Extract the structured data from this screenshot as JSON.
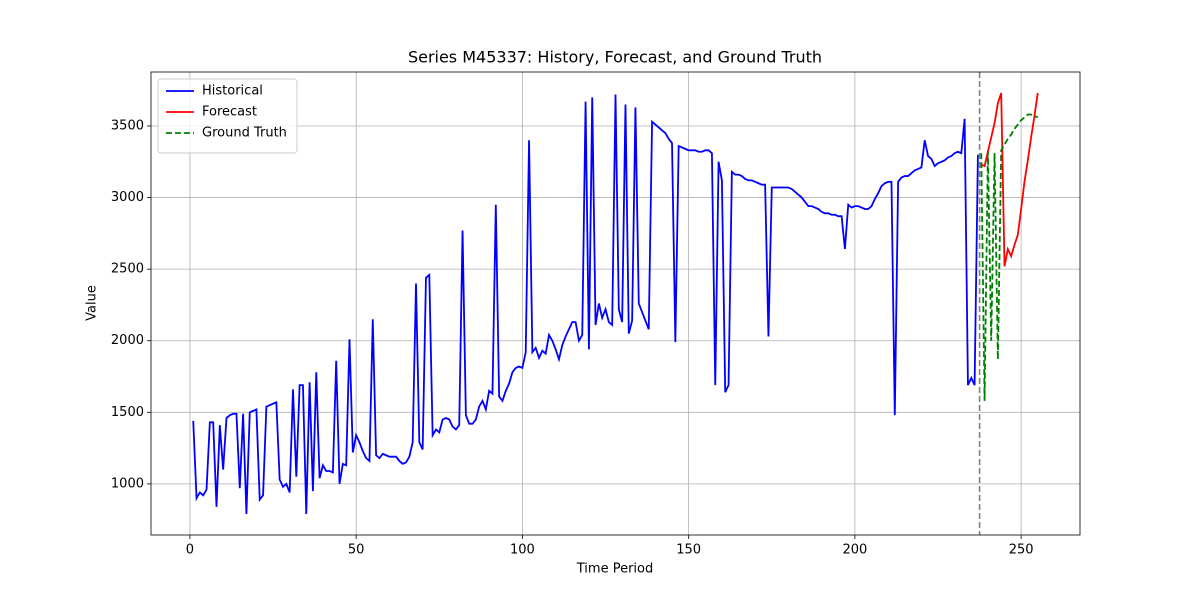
{
  "chart_data": {
    "type": "line",
    "title": "Series M45337: History, Forecast, and Ground Truth",
    "x_label": "Time Period",
    "y_label": "Value",
    "xlim": [
      -11.7,
      267.7
    ],
    "ylim": [
      643,
      3877
    ],
    "xticks": [
      0,
      50,
      100,
      150,
      200,
      250
    ],
    "yticks": [
      1000,
      1500,
      2000,
      2500,
      3000,
      3500
    ],
    "grid": true,
    "legend": "upper left",
    "vline": 237.5,
    "series": [
      {
        "name": "Historical",
        "color": "#0000ff",
        "dash": false,
        "x": [
          1,
          2,
          3,
          4,
          5,
          6,
          7,
          8,
          9,
          10,
          11,
          12,
          13,
          14,
          15,
          16,
          17,
          18,
          19,
          20,
          21,
          22,
          23,
          24,
          25,
          26,
          27,
          28,
          29,
          30,
          31,
          32,
          33,
          34,
          35,
          36,
          37,
          38,
          39,
          40,
          41,
          42,
          43,
          44,
          45,
          46,
          47,
          48,
          49,
          50,
          51,
          52,
          53,
          54,
          55,
          56,
          57,
          58,
          59,
          60,
          61,
          62,
          63,
          64,
          65,
          66,
          67,
          68,
          69,
          70,
          71,
          72,
          73,
          74,
          75,
          76,
          77,
          78,
          79,
          80,
          81,
          82,
          83,
          84,
          85,
          86,
          87,
          88,
          89,
          90,
          91,
          92,
          93,
          94,
          95,
          96,
          97,
          98,
          99,
          100,
          101,
          102,
          103,
          104,
          105,
          106,
          107,
          108,
          109,
          110,
          111,
          112,
          113,
          114,
          115,
          116,
          117,
          118,
          119,
          120,
          121,
          122,
          123,
          124,
          125,
          126,
          127,
          128,
          129,
          130,
          131,
          132,
          133,
          134,
          135,
          136,
          137,
          138,
          139,
          140,
          141,
          142,
          143,
          144,
          145,
          146,
          147,
          148,
          149,
          150,
          151,
          152,
          153,
          154,
          155,
          156,
          157,
          158,
          159,
          160,
          161,
          162,
          163,
          164,
          165,
          166,
          167,
          168,
          169,
          170,
          171,
          172,
          173,
          174,
          175,
          176,
          177,
          178,
          179,
          180,
          181,
          182,
          183,
          184,
          185,
          186,
          187,
          188,
          189,
          190,
          191,
          192,
          193,
          194,
          195,
          196,
          197,
          198,
          199,
          200,
          201,
          202,
          203,
          204,
          205,
          206,
          207,
          208,
          209,
          210,
          211,
          212,
          213,
          214,
          215,
          216,
          217,
          218,
          219,
          220,
          221,
          222,
          223,
          224,
          225,
          226,
          227,
          228,
          229,
          230,
          231,
          232,
          233,
          234,
          235,
          236,
          237
        ],
        "values": [
          1440,
          900,
          940,
          920,
          960,
          1430,
          1430,
          840,
          1410,
          1100,
          1460,
          1480,
          1490,
          1490,
          970,
          1490,
          790,
          1500,
          1510,
          1520,
          890,
          920,
          1540,
          1550,
          1560,
          1570,
          1030,
          980,
          1000,
          940,
          1660,
          1050,
          1690,
          1690,
          790,
          1710,
          950,
          1780,
          1040,
          1130,
          1090,
          1090,
          1080,
          1860,
          1000,
          1140,
          1130,
          2010,
          1220,
          1340,
          1290,
          1230,
          1180,
          1160,
          2150,
          1200,
          1180,
          1210,
          1200,
          1190,
          1190,
          1190,
          1160,
          1140,
          1150,
          1190,
          1290,
          2400,
          1290,
          1240,
          2440,
          2460,
          1340,
          1380,
          1360,
          1450,
          1460,
          1450,
          1400,
          1380,
          1410,
          2770,
          1480,
          1420,
          1420,
          1450,
          1540,
          1580,
          1520,
          1650,
          1630,
          2950,
          1610,
          1580,
          1650,
          1700,
          1780,
          1810,
          1820,
          1810,
          1920,
          3400,
          1920,
          1950,
          1880,
          1930,
          1910,
          2040,
          2000,
          1940,
          1870,
          1970,
          2030,
          2080,
          2130,
          2130,
          2000,
          2040,
          3670,
          1940,
          3700,
          2110,
          2260,
          2160,
          2220,
          2130,
          2110,
          3720,
          2220,
          2130,
          3650,
          2050,
          2140,
          3630,
          2260,
          2200,
          2140,
          2080,
          3530,
          3510,
          3490,
          3470,
          3450,
          3410,
          3380,
          1990,
          3360,
          3350,
          3340,
          3330,
          3330,
          3330,
          3320,
          3320,
          3330,
          3330,
          3310,
          1690,
          3250,
          3120,
          1640,
          1690,
          3180,
          3160,
          3160,
          3150,
          3130,
          3120,
          3120,
          3110,
          3100,
          3090,
          3090,
          2030,
          3070,
          3070,
          3070,
          3070,
          3070,
          3070,
          3060,
          3040,
          3020,
          3000,
          2970,
          2940,
          2940,
          2930,
          2920,
          2900,
          2890,
          2890,
          2880,
          2880,
          2870,
          2870,
          2640,
          2950,
          2930,
          2940,
          2940,
          2930,
          2920,
          2920,
          2940,
          2990,
          3030,
          3080,
          3100,
          3110,
          3110,
          1480,
          3110,
          3140,
          3150,
          3150,
          3170,
          3190,
          3200,
          3210,
          3400,
          3290,
          3270,
          3220,
          3240,
          3250,
          3260,
          3280,
          3290,
          3310,
          3320,
          3310,
          3550,
          1690,
          1740,
          1690,
          3300
        ]
      },
      {
        "name": "Forecast",
        "color": "#ff0000",
        "dash": false,
        "x": [
          238,
          239,
          240,
          241,
          242,
          243,
          244,
          245,
          246,
          247,
          248,
          249,
          250,
          251,
          252,
          253,
          254,
          255
        ],
        "values": [
          3230,
          3220,
          3320,
          3420,
          3520,
          3660,
          3730,
          2520,
          2640,
          2590,
          2670,
          2740,
          2920,
          3110,
          3260,
          3420,
          3570,
          3730
        ]
      },
      {
        "name": "Ground Truth",
        "color": "#008000",
        "dash": true,
        "x": [
          238,
          239,
          240,
          241,
          242,
          243,
          244,
          245,
          246,
          247,
          248,
          249,
          250,
          251,
          252,
          253,
          254,
          255
        ],
        "values": [
          3310,
          1580,
          3320,
          2000,
          3310,
          1870,
          3330,
          3370,
          3410,
          3440,
          3480,
          3510,
          3540,
          3560,
          3580,
          3580,
          3570,
          3560
        ]
      }
    ]
  }
}
